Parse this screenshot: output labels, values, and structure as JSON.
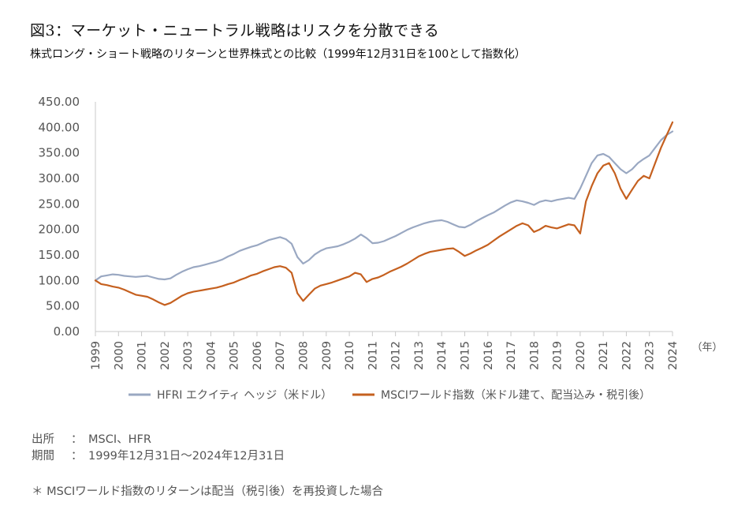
{
  "title": "図3：マーケット・ニュートラル戦略はリスクを分散できる",
  "subtitle": "株式ロング・ショート戦略のリターンと世界株式との比較（1999年12月31日を100として指数化）",
  "source": {
    "source_label": "出所",
    "source_colon": "：",
    "source_value": "MSCI、HFR",
    "period_label": "期間",
    "period_colon": "：",
    "period_value": "1999年12月31日～2024年12月31日"
  },
  "footnote": "＊ MSCIワールド指数のリターンは配当（税引後）を再投資した場合",
  "chart_data": {
    "type": "line",
    "x_unit_label": "（年）",
    "ylim": [
      0,
      450
    ],
    "yticks": [
      "0.00",
      "50.00",
      "100.00",
      "150.00",
      "200.00",
      "250.00",
      "300.00",
      "350.00",
      "400.00",
      "450.00"
    ],
    "xticks": [
      "1999",
      "2000",
      "2001",
      "2002",
      "2003",
      "2004",
      "2005",
      "2006",
      "2007",
      "2008",
      "2009",
      "2010",
      "2011",
      "2012",
      "2013",
      "2014",
      "2015",
      "2016",
      "2017",
      "2018",
      "2019",
      "2020",
      "2021",
      "2022",
      "2023",
      "2024"
    ],
    "grid": false,
    "legend_position": "bottom",
    "x": [
      1999.0,
      1999.25,
      1999.5,
      1999.75,
      2000.0,
      2000.25,
      2000.5,
      2000.75,
      2001.0,
      2001.25,
      2001.5,
      2001.75,
      2002.0,
      2002.25,
      2002.5,
      2002.75,
      2003.0,
      2003.25,
      2003.5,
      2003.75,
      2004.0,
      2004.25,
      2004.5,
      2004.75,
      2005.0,
      2005.25,
      2005.5,
      2005.75,
      2006.0,
      2006.25,
      2006.5,
      2006.75,
      2007.0,
      2007.25,
      2007.5,
      2007.75,
      2008.0,
      2008.25,
      2008.5,
      2008.75,
      2009.0,
      2009.25,
      2009.5,
      2009.75,
      2010.0,
      2010.25,
      2010.5,
      2010.75,
      2011.0,
      2011.25,
      2011.5,
      2011.75,
      2012.0,
      2012.25,
      2012.5,
      2012.75,
      2013.0,
      2013.25,
      2013.5,
      2013.75,
      2014.0,
      2014.25,
      2014.5,
      2014.75,
      2015.0,
      2015.25,
      2015.5,
      2015.75,
      2016.0,
      2016.25,
      2016.5,
      2016.75,
      2017.0,
      2017.25,
      2017.5,
      2017.75,
      2018.0,
      2018.25,
      2018.5,
      2018.75,
      2019.0,
      2019.25,
      2019.5,
      2019.75,
      2020.0,
      2020.25,
      2020.5,
      2020.75,
      2021.0,
      2021.25,
      2021.5,
      2021.75,
      2022.0,
      2022.25,
      2022.5,
      2022.75,
      2023.0,
      2023.25,
      2023.5,
      2023.75,
      2024.0
    ],
    "series": [
      {
        "name": "HFRI エクイティ ヘッジ（米ドル）",
        "color": "#9aa8c2",
        "values": [
          100,
          108,
          110,
          112,
          111,
          109,
          108,
          107,
          108,
          109,
          106,
          103,
          102,
          104,
          111,
          117,
          122,
          126,
          128,
          131,
          134,
          137,
          141,
          147,
          152,
          158,
          162,
          166,
          169,
          174,
          179,
          182,
          185,
          181,
          172,
          146,
          133,
          140,
          151,
          158,
          163,
          165,
          167,
          171,
          176,
          182,
          190,
          183,
          173,
          174,
          177,
          182,
          187,
          193,
          199,
          204,
          208,
          212,
          215,
          217,
          218,
          215,
          210,
          205,
          204,
          209,
          216,
          222,
          228,
          233,
          240,
          247,
          253,
          257,
          255,
          252,
          248,
          254,
          257,
          255,
          258,
          260,
          262,
          260,
          280,
          305,
          330,
          345,
          348,
          342,
          330,
          318,
          310,
          318,
          330,
          338,
          345,
          360,
          375,
          385,
          392
        ]
      },
      {
        "name": "MSCIワールド指数（米ドル建て、配当込み・税引後）",
        "color": "#c5601f",
        "values": [
          100,
          93,
          91,
          88,
          86,
          82,
          77,
          72,
          70,
          68,
          63,
          57,
          52,
          56,
          63,
          70,
          75,
          78,
          80,
          82,
          84,
          86,
          89,
          93,
          96,
          101,
          105,
          110,
          113,
          118,
          122,
          126,
          128,
          125,
          115,
          75,
          60,
          72,
          84,
          90,
          93,
          96,
          100,
          104,
          108,
          115,
          112,
          97,
          103,
          106,
          111,
          117,
          122,
          127,
          133,
          140,
          147,
          152,
          156,
          158,
          160,
          162,
          163,
          156,
          148,
          153,
          159,
          164,
          170,
          178,
          186,
          193,
          200,
          207,
          212,
          208,
          195,
          200,
          207,
          204,
          202,
          206,
          210,
          208,
          192,
          255,
          285,
          310,
          325,
          330,
          310,
          280,
          260,
          278,
          295,
          305,
          300,
          330,
          360,
          385,
          410
        ]
      }
    ]
  }
}
